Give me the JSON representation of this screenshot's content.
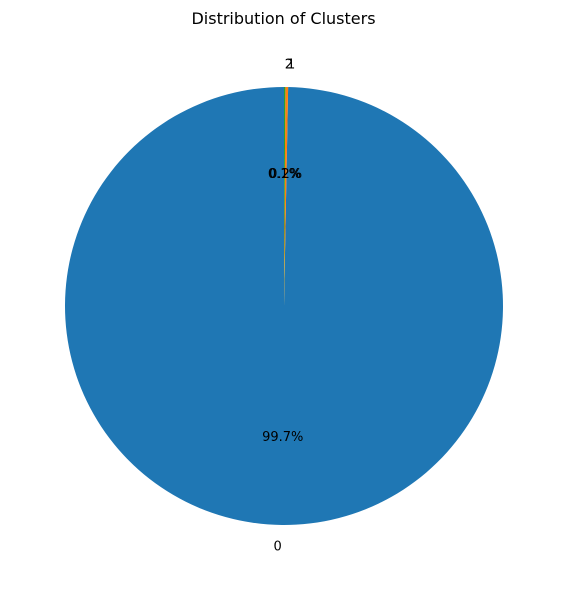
{
  "chart_data": {
    "type": "pie",
    "title": "Distribution of Clusters",
    "labels": [
      "0",
      "1",
      "2"
    ],
    "percent_labels": [
      "99.7%",
      "0.2%",
      "0.1%"
    ],
    "values": [
      99.7,
      0.2,
      0.1
    ],
    "colors": [
      "#1f77b4",
      "#ff7f0e",
      "#2ca02c"
    ],
    "start_angle_deg": 90,
    "direction": "counterclockwise",
    "legend": "none"
  }
}
